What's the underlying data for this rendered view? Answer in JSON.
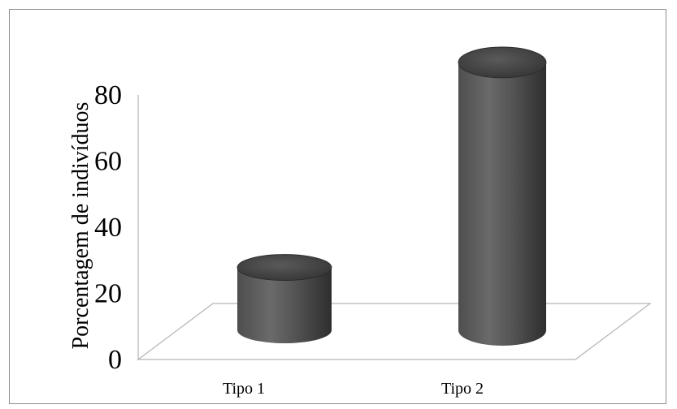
{
  "chart_data": {
    "type": "bar",
    "style": "3d-cylinder",
    "title": "",
    "xlabel": "",
    "ylabel": "Porcentagem de indivíduos",
    "categories": [
      "Tipo 1",
      "Tipo 2"
    ],
    "values": [
      19,
      81
    ],
    "ylim": [
      0,
      80
    ],
    "yticks": [
      0,
      20,
      40,
      60,
      80
    ],
    "grid": false,
    "colors": {
      "bar_top": "#3f3f3f",
      "bar_side_dark": "#2e2e2e",
      "bar_side_light": "#6a6a6a",
      "floor": "#b4b4b4",
      "frame": "#8c8c8c"
    }
  }
}
